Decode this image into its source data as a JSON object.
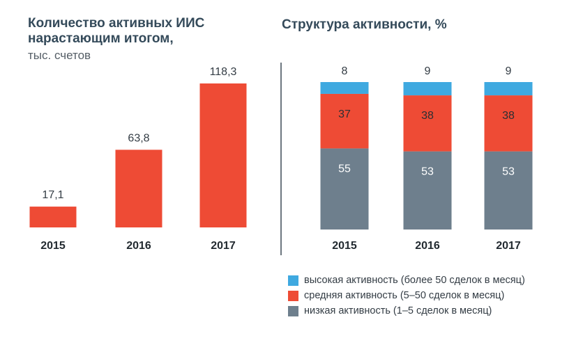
{
  "colors": {
    "high": "#3fa9e0",
    "medium": "#ee4b35",
    "low": "#6e7f8d",
    "bar": "#ee4b35",
    "title": "#344a5a"
  },
  "chart_data": [
    {
      "type": "bar",
      "title": "Количество активных ИИС нарастающим итогом,",
      "subtitle": "тыс. счетов",
      "categories": [
        "2015",
        "2016",
        "2017"
      ],
      "values": [
        17.1,
        63.8,
        118.3
      ],
      "value_labels": [
        "17,1",
        "63,8",
        "118,3"
      ],
      "ylim": [
        0,
        118.3
      ],
      "grid": false,
      "legend": "none"
    },
    {
      "type": "bar",
      "stacked": true,
      "title": "Структура активности, %",
      "categories": [
        "2015",
        "2016",
        "2017"
      ],
      "ylim": [
        0,
        100
      ],
      "legend": "bottom",
      "series": [
        {
          "name": "низкая активность (1–5 сделок в месяц)",
          "key": "low",
          "values": [
            55,
            53,
            53
          ]
        },
        {
          "name": "средняя активность (5–50 сделок в месяц)",
          "key": "medium",
          "values": [
            37,
            38,
            38
          ]
        },
        {
          "name": "высокая активность (более 50 сделок в месяц)",
          "key": "high",
          "values": [
            8,
            9,
            9
          ]
        }
      ]
    }
  ]
}
